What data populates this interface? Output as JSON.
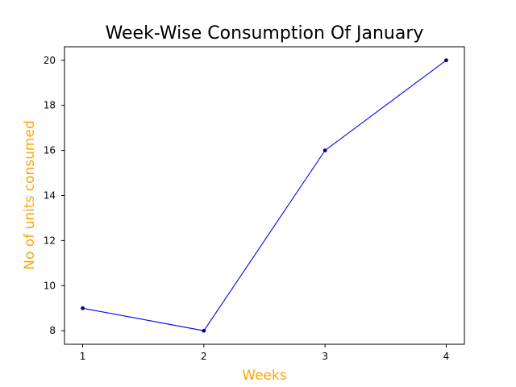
{
  "chart_data": {
    "type": "line",
    "title": "Week-Wise Consumption Of January",
    "xlabel": "Weeks",
    "ylabel": "No of units consumed",
    "x": [
      1,
      2,
      3,
      4
    ],
    "x_ticks": [
      1,
      2,
      3,
      4
    ],
    "y_ticks": [
      8,
      10,
      12,
      14,
      16,
      18,
      20
    ],
    "xlim": [
      0.85,
      4.15
    ],
    "ylim": [
      7.4,
      20.6
    ],
    "grid": false,
    "series": [
      {
        "values": [
          9,
          8,
          16,
          20
        ],
        "color": "#0000ff",
        "marker": "circle",
        "marker_color": "#00008b"
      }
    ],
    "label_color": "#ffa500"
  }
}
